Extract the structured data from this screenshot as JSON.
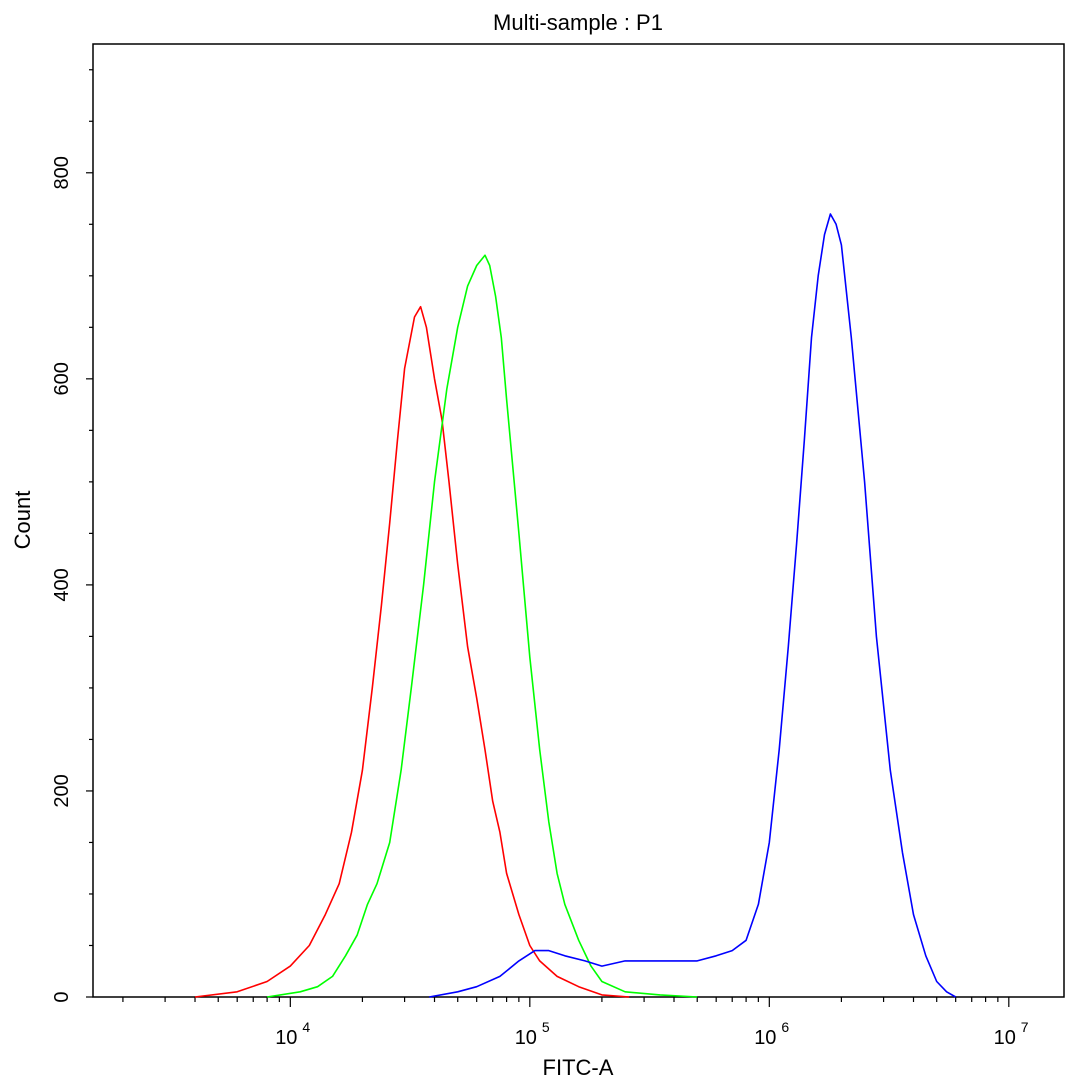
{
  "chart_data": {
    "type": "line",
    "title": "Multi-sample : P1",
    "xlabel": "FITC-A",
    "ylabel": "Count",
    "x_scale": "log",
    "xlim": [
      1500,
      17000000
    ],
    "ylim": [
      0,
      925
    ],
    "x_ticks": [
      {
        "value": 10000,
        "base": "10",
        "exp": "4"
      },
      {
        "value": 100000,
        "base": "10",
        "exp": "5"
      },
      {
        "value": 1000000,
        "base": "10",
        "exp": "6"
      },
      {
        "value": 10000000,
        "base": "10",
        "exp": "7"
      }
    ],
    "y_ticks": [
      0,
      200,
      400,
      600,
      800
    ],
    "series": [
      {
        "color": "#ff0000",
        "x": [
          4000,
          6000,
          8000,
          10000,
          12000,
          14000,
          16000,
          18000,
          20000,
          22000,
          24000,
          26000,
          28000,
          30000,
          33000,
          35000,
          37000,
          40000,
          43000,
          46000,
          50000,
          55000,
          60000,
          65000,
          70000,
          75000,
          80000,
          90000,
          100000,
          110000,
          130000,
          160000,
          200000,
          260000
        ],
        "y": [
          0,
          5,
          15,
          30,
          50,
          80,
          110,
          160,
          220,
          300,
          380,
          460,
          540,
          610,
          660,
          670,
          650,
          600,
          560,
          500,
          420,
          340,
          290,
          240,
          190,
          160,
          120,
          80,
          50,
          35,
          20,
          10,
          2,
          0
        ]
      },
      {
        "color": "#00ff00",
        "x": [
          8000,
          11000,
          13000,
          15000,
          17000,
          19000,
          21000,
          23000,
          26000,
          29000,
          32000,
          36000,
          40000,
          45000,
          50000,
          55000,
          60000,
          65000,
          68000,
          72000,
          76000,
          80000,
          90000,
          100000,
          110000,
          120000,
          130000,
          140000,
          160000,
          180000,
          200000,
          250000,
          350000,
          500000
        ],
        "y": [
          0,
          5,
          10,
          20,
          40,
          60,
          90,
          110,
          150,
          220,
          300,
          400,
          500,
          590,
          650,
          690,
          710,
          720,
          710,
          680,
          640,
          580,
          450,
          330,
          240,
          170,
          120,
          90,
          55,
          30,
          15,
          5,
          2,
          0
        ]
      },
      {
        "color": "#0000ff",
        "x": [
          38000,
          50000,
          60000,
          75000,
          90000,
          105000,
          120000,
          140000,
          170000,
          200000,
          250000,
          300000,
          400000,
          500000,
          600000,
          700000,
          800000,
          900000,
          1000000,
          1100000,
          1200000,
          1300000,
          1400000,
          1500000,
          1600000,
          1700000,
          1800000,
          1900000,
          2000000,
          2200000,
          2500000,
          2800000,
          3200000,
          3600000,
          4000000,
          4500000,
          5000000,
          5500000,
          6000000
        ],
        "y": [
          0,
          5,
          10,
          20,
          35,
          45,
          45,
          40,
          35,
          30,
          35,
          35,
          35,
          35,
          40,
          45,
          55,
          90,
          150,
          240,
          340,
          440,
          540,
          640,
          700,
          740,
          760,
          750,
          730,
          640,
          500,
          350,
          220,
          140,
          80,
          40,
          15,
          5,
          0
        ]
      }
    ]
  }
}
